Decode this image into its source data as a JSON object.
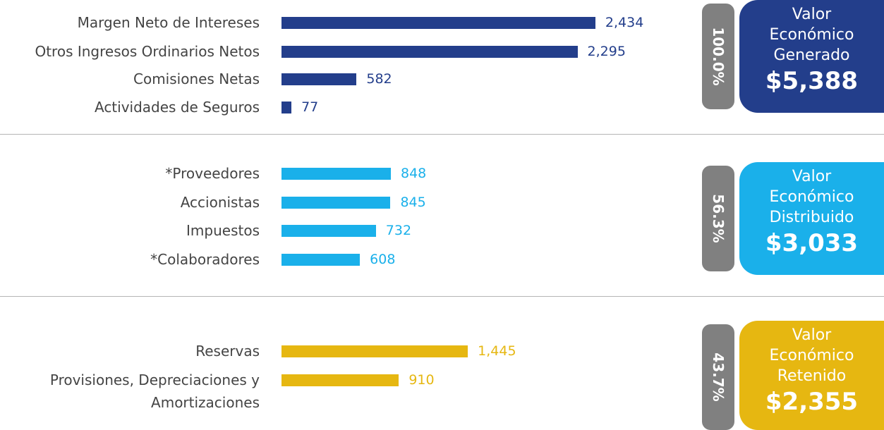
{
  "chart_data": [
    {
      "type": "bar",
      "orientation": "horizontal",
      "title": "Valor Económico Generado",
      "total": "$5,388",
      "share": "100.0%",
      "categories": [
        "Margen Neto de Intereses",
        "Otros Ingresos Ordinarios Netos",
        "Comisiones Netas",
        "Actividades de Seguros"
      ],
      "values": [
        2434,
        2295,
        582,
        77
      ],
      "value_labels": [
        "2,434",
        "2,295",
        "582",
        "77"
      ],
      "color": "#233e8b",
      "xlim": [
        0,
        2500
      ]
    },
    {
      "type": "bar",
      "orientation": "horizontal",
      "title": "Valor Económico Distribuido",
      "total": "$3,033",
      "share": "56.3%",
      "categories": [
        "*Proveedores",
        "Accionistas",
        "Impuestos",
        "*Colaboradores"
      ],
      "values": [
        848,
        845,
        732,
        608
      ],
      "value_labels": [
        "848",
        "845",
        "732",
        "608"
      ],
      "color": "#1ab0ea",
      "xlim": [
        0,
        2500
      ]
    },
    {
      "type": "bar",
      "orientation": "horizontal",
      "title": "Valor Económico Retenido",
      "total": "$2,355",
      "share": "43.7%",
      "categories": [
        "Reservas",
        "Provisiones, Depreciaciones y Amortizaciones"
      ],
      "values": [
        1445,
        910
      ],
      "value_labels": [
        "1,445",
        "910"
      ],
      "color": "#e6b711",
      "xlim": [
        0,
        2500
      ]
    }
  ]
}
